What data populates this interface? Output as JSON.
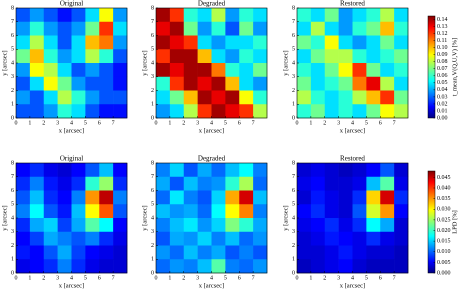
{
  "chart_data": [
    {
      "type": "heatmap",
      "title": "Original",
      "xlabel": "x [arcsec]",
      "ylabel": "y [arcsec]",
      "xlim": [
        0,
        8
      ],
      "ylim": [
        0,
        8
      ],
      "xticks": [
        0,
        1,
        2,
        3,
        4,
        5,
        6,
        7
      ],
      "yticks": [
        0,
        1,
        2,
        3,
        4,
        5,
        6,
        7,
        8
      ],
      "colormap": "jet",
      "zlim": [
        0,
        0.145
      ],
      "z": [
        [
          0.03,
          0.04,
          0.03,
          0.02,
          0.03,
          0.05,
          0.09,
          0.04
        ],
        [
          0.04,
          0.06,
          0.04,
          0.03,
          0.04,
          0.07,
          0.12,
          0.05
        ],
        [
          0.05,
          0.08,
          0.05,
          0.03,
          0.05,
          0.1,
          0.11,
          0.04
        ],
        [
          0.07,
          0.1,
          0.06,
          0.04,
          0.05,
          0.08,
          0.06,
          0.03
        ],
        [
          0.04,
          0.09,
          0.08,
          0.05,
          0.03,
          0.04,
          0.03,
          0.02
        ],
        [
          0.03,
          0.05,
          0.09,
          0.07,
          0.04,
          0.03,
          0.03,
          0.02
        ],
        [
          0.04,
          0.03,
          0.05,
          0.08,
          0.06,
          0.04,
          0.03,
          0.03
        ],
        [
          0.03,
          0.03,
          0.04,
          0.06,
          0.05,
          0.03,
          0.02,
          0.02
        ]
      ]
    },
    {
      "type": "heatmap",
      "title": "Degraded",
      "xlabel": "x [arcsec]",
      "ylabel": "y [arcsec]",
      "xlim": [
        0,
        8
      ],
      "ylim": [
        0,
        8
      ],
      "xticks": [
        0,
        1,
        2,
        3,
        4,
        5,
        6,
        7
      ],
      "yticks": [
        0,
        1,
        2,
        3,
        4,
        5,
        6,
        7,
        8
      ],
      "colormap": "jet",
      "zlim": [
        0,
        0.145
      ],
      "z": [
        [
          0.14,
          0.12,
          0.06,
          0.05,
          0.08,
          0.04,
          0.06,
          0.05
        ],
        [
          0.13,
          0.14,
          0.07,
          0.04,
          0.06,
          0.03,
          0.07,
          0.04
        ],
        [
          0.14,
          0.13,
          0.12,
          0.05,
          0.04,
          0.05,
          0.05,
          0.06
        ],
        [
          0.12,
          0.14,
          0.14,
          0.1,
          0.05,
          0.04,
          0.06,
          0.05
        ],
        [
          0.14,
          0.13,
          0.14,
          0.14,
          0.11,
          0.06,
          0.05,
          0.07
        ],
        [
          0.06,
          0.12,
          0.14,
          0.13,
          0.14,
          0.1,
          0.05,
          0.04
        ],
        [
          0.05,
          0.07,
          0.1,
          0.14,
          0.13,
          0.14,
          0.09,
          0.06
        ],
        [
          0.04,
          0.05,
          0.08,
          0.12,
          0.14,
          0.13,
          0.12,
          0.08
        ]
      ]
    },
    {
      "type": "heatmap",
      "title": "Restored",
      "xlabel": "x [arcsec]",
      "ylabel": "y [arcsec]",
      "xlim": [
        0,
        8
      ],
      "ylim": [
        0,
        8
      ],
      "xticks": [
        0,
        1,
        2,
        3,
        4,
        5,
        6,
        7
      ],
      "yticks": [
        0,
        1,
        2,
        3,
        4,
        5,
        6,
        7,
        8
      ],
      "colormap": "jet",
      "zlim": [
        0,
        0.145
      ],
      "z": [
        [
          0.06,
          0.05,
          0.07,
          0.04,
          0.05,
          0.06,
          0.08,
          0.05
        ],
        [
          0.05,
          0.08,
          0.05,
          0.04,
          0.06,
          0.07,
          0.1,
          0.06
        ],
        [
          0.07,
          0.06,
          0.09,
          0.05,
          0.04,
          0.05,
          0.07,
          0.05
        ],
        [
          0.05,
          0.07,
          0.08,
          0.08,
          0.06,
          0.05,
          0.06,
          0.07
        ],
        [
          0.06,
          0.05,
          0.07,
          0.09,
          0.12,
          0.07,
          0.05,
          0.06
        ],
        [
          0.07,
          0.05,
          0.06,
          0.07,
          0.11,
          0.13,
          0.08,
          0.05
        ],
        [
          0.08,
          0.06,
          0.05,
          0.06,
          0.08,
          0.1,
          0.12,
          0.07
        ],
        [
          0.06,
          0.07,
          0.05,
          0.06,
          0.05,
          0.07,
          0.09,
          0.08
        ]
      ],
      "colorbar": {
        "label": "t_mean,V(Q,U,V) [%]",
        "ticks": [
          {
            "value": 0,
            "label": "0.00"
          },
          {
            "value": 0.01,
            "label": "0.01"
          },
          {
            "value": 0.02,
            "label": "0.02"
          },
          {
            "value": 0.03,
            "label": "0.03"
          },
          {
            "value": 0.04,
            "label": "0.04"
          },
          {
            "value": 0.05,
            "label": "0.05"
          },
          {
            "value": 0.06,
            "label": "0.06"
          },
          {
            "value": 0.07,
            "label": "0.07"
          },
          {
            "value": 0.08,
            "label": "0.08"
          },
          {
            "value": 0.09,
            "label": "0.09"
          },
          {
            "value": 0.1,
            "label": "0.10"
          },
          {
            "value": 0.11,
            "label": "0.11"
          },
          {
            "value": 0.12,
            "label": "0.12"
          },
          {
            "value": 0.13,
            "label": "0.13"
          },
          {
            "value": 0.14,
            "label": "0.14"
          }
        ]
      }
    },
    {
      "type": "heatmap",
      "title": "Original",
      "xlabel": "x [arcsec]",
      "ylabel": "y [arcsec]",
      "xlim": [
        0,
        8
      ],
      "ylim": [
        0,
        8
      ],
      "xticks": [
        0,
        1,
        2,
        3,
        4,
        5,
        6,
        7
      ],
      "yticks": [
        0,
        1,
        2,
        3,
        4,
        5,
        6,
        7,
        8
      ],
      "colormap": "jet",
      "zlim": [
        0,
        0.048
      ],
      "z": [
        [
          0.006,
          0.008,
          0.005,
          0.004,
          0.006,
          0.01,
          0.015,
          0.006
        ],
        [
          0.008,
          0.012,
          0.007,
          0.005,
          0.008,
          0.02,
          0.025,
          0.008
        ],
        [
          0.01,
          0.015,
          0.008,
          0.006,
          0.012,
          0.035,
          0.045,
          0.012
        ],
        [
          0.012,
          0.018,
          0.01,
          0.007,
          0.015,
          0.03,
          0.038,
          0.01
        ],
        [
          0.008,
          0.014,
          0.016,
          0.009,
          0.014,
          0.022,
          0.018,
          0.006
        ],
        [
          0.006,
          0.009,
          0.014,
          0.012,
          0.01,
          0.012,
          0.008,
          0.005
        ],
        [
          0.007,
          0.006,
          0.01,
          0.014,
          0.009,
          0.006,
          0.005,
          0.004
        ],
        [
          0.005,
          0.006,
          0.008,
          0.012,
          0.008,
          0.005,
          0.004,
          0.004
        ]
      ]
    },
    {
      "type": "heatmap",
      "title": "Degraded",
      "xlabel": "x [arcsec]",
      "ylabel": "y [arcsec]",
      "xlim": [
        0,
        8
      ],
      "ylim": [
        0,
        8
      ],
      "xticks": [
        0,
        1,
        2,
        3,
        4,
        5,
        6,
        7
      ],
      "yticks": [
        0,
        1,
        2,
        3,
        4,
        5,
        6,
        7,
        8
      ],
      "colormap": "jet",
      "zlim": [
        0,
        0.048
      ],
      "z": [
        [
          0.012,
          0.016,
          0.01,
          0.014,
          0.011,
          0.015,
          0.018,
          0.012
        ],
        [
          0.014,
          0.01,
          0.015,
          0.012,
          0.013,
          0.02,
          0.026,
          0.011
        ],
        [
          0.011,
          0.017,
          0.012,
          0.01,
          0.016,
          0.034,
          0.044,
          0.015
        ],
        [
          0.015,
          0.013,
          0.014,
          0.011,
          0.018,
          0.03,
          0.036,
          0.012
        ],
        [
          0.012,
          0.015,
          0.017,
          0.013,
          0.016,
          0.024,
          0.02,
          0.014
        ],
        [
          0.01,
          0.014,
          0.013,
          0.016,
          0.012,
          0.015,
          0.011,
          0.013
        ],
        [
          0.013,
          0.011,
          0.015,
          0.012,
          0.014,
          0.01,
          0.012,
          0.01
        ],
        [
          0.011,
          0.013,
          0.012,
          0.015,
          0.022,
          0.012,
          0.011,
          0.013
        ]
      ]
    },
    {
      "type": "heatmap",
      "title": "Restored",
      "xlabel": "x [arcsec]",
      "ylabel": "y [arcsec]",
      "xlim": [
        0,
        8
      ],
      "ylim": [
        0,
        8
      ],
      "xticks": [
        0,
        1,
        2,
        3,
        4,
        5,
        6,
        7
      ],
      "yticks": [
        0,
        1,
        2,
        3,
        4,
        5,
        6,
        7,
        8
      ],
      "colormap": "jet",
      "zlim": [
        0,
        0.048
      ],
      "z": [
        [
          0.004,
          0.005,
          0.004,
          0.003,
          0.004,
          0.006,
          0.01,
          0.004
        ],
        [
          0.005,
          0.006,
          0.004,
          0.004,
          0.005,
          0.015,
          0.022,
          0.005
        ],
        [
          0.004,
          0.007,
          0.005,
          0.004,
          0.008,
          0.032,
          0.044,
          0.008
        ],
        [
          0.006,
          0.008,
          0.005,
          0.004,
          0.01,
          0.028,
          0.035,
          0.006
        ],
        [
          0.005,
          0.006,
          0.008,
          0.005,
          0.008,
          0.018,
          0.014,
          0.004
        ],
        [
          0.004,
          0.005,
          0.007,
          0.006,
          0.005,
          0.008,
          0.005,
          0.004
        ],
        [
          0.004,
          0.004,
          0.005,
          0.007,
          0.005,
          0.004,
          0.004,
          0.003
        ],
        [
          0.003,
          0.004,
          0.005,
          0.006,
          0.004,
          0.003,
          0.003,
          0.003
        ]
      ],
      "colorbar": {
        "label": "LPD [%]",
        "ticks": [
          {
            "value": 0,
            "label": "0.000"
          },
          {
            "value": 0.005,
            "label": "0.005"
          },
          {
            "value": 0.01,
            "label": "0.010"
          },
          {
            "value": 0.015,
            "label": "0.015"
          },
          {
            "value": 0.02,
            "label": "0.020"
          },
          {
            "value": 0.025,
            "label": "0.025"
          },
          {
            "value": 0.03,
            "label": "0.030"
          },
          {
            "value": 0.035,
            "label": "0.035"
          },
          {
            "value": 0.04,
            "label": "0.040"
          },
          {
            "value": 0.045,
            "label": "0.045"
          }
        ]
      }
    }
  ]
}
